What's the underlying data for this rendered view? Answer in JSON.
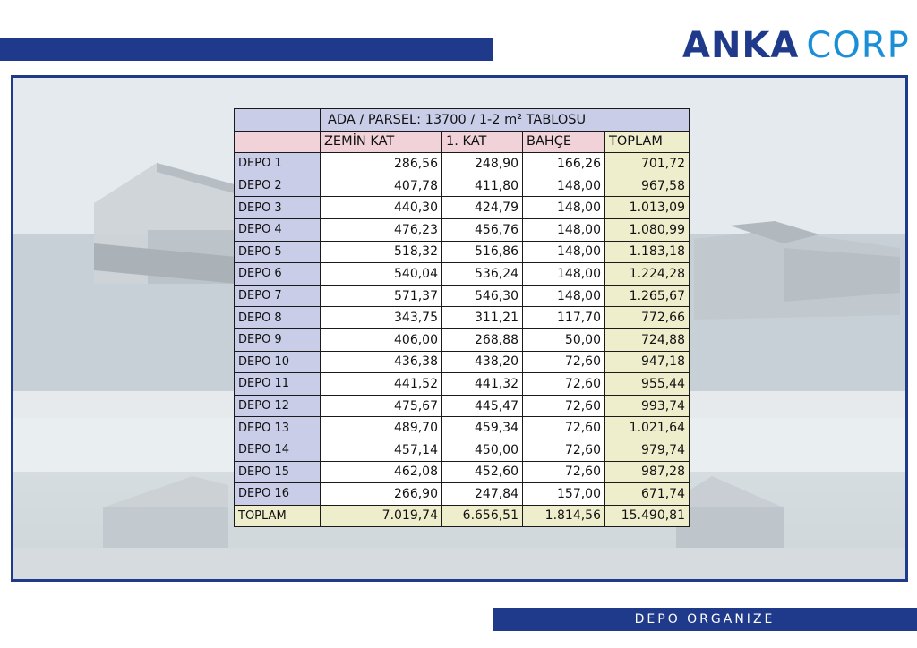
{
  "logo": {
    "part1": "ANKA",
    "part2": "CORP"
  },
  "colors": {
    "brand_navy": "#1f3a8a",
    "brand_cyan": "#1a8fd8",
    "label_bg": "#c9cde8",
    "header_bg": "#f1d2d8",
    "total_bg": "#eeeecd"
  },
  "table": {
    "title": "ADA / PARSEL: 13700 / 1-2  m² TABLOSU",
    "headers": [
      "ZEMİN KAT",
      "1. KAT",
      "BAHÇE",
      "TOPLAM"
    ],
    "rows": [
      {
        "label": "DEPO 1",
        "zemin": "286,56",
        "kat": "248,90",
        "bahce": "166,26",
        "toplam": "701,72"
      },
      {
        "label": "DEPO 2",
        "zemin": "407,78",
        "kat": "411,80",
        "bahce": "148,00",
        "toplam": "967,58"
      },
      {
        "label": "DEPO 3",
        "zemin": "440,30",
        "kat": "424,79",
        "bahce": "148,00",
        "toplam": "1.013,09"
      },
      {
        "label": "DEPO 4",
        "zemin": "476,23",
        "kat": "456,76",
        "bahce": "148,00",
        "toplam": "1.080,99"
      },
      {
        "label": "DEPO 5",
        "zemin": "518,32",
        "kat": "516,86",
        "bahce": "148,00",
        "toplam": "1.183,18"
      },
      {
        "label": "DEPO 6",
        "zemin": "540,04",
        "kat": "536,24",
        "bahce": "148,00",
        "toplam": "1.224,28"
      },
      {
        "label": "DEPO 7",
        "zemin": "571,37",
        "kat": "546,30",
        "bahce": "148,00",
        "toplam": "1.265,67"
      },
      {
        "label": "DEPO 8",
        "zemin": "343,75",
        "kat": "311,21",
        "bahce": "117,70",
        "toplam": "772,66"
      },
      {
        "label": "DEPO 9",
        "zemin": "406,00",
        "kat": "268,88",
        "bahce": "50,00",
        "toplam": "724,88"
      },
      {
        "label": "DEPO 10",
        "zemin": "436,38",
        "kat": "438,20",
        "bahce": "72,60",
        "toplam": "947,18"
      },
      {
        "label": "DEPO 11",
        "zemin": "441,52",
        "kat": "441,32",
        "bahce": "72,60",
        "toplam": "955,44"
      },
      {
        "label": "DEPO 12",
        "zemin": "475,67",
        "kat": "445,47",
        "bahce": "72,60",
        "toplam": "993,74"
      },
      {
        "label": "DEPO 13",
        "zemin": "489,70",
        "kat": "459,34",
        "bahce": "72,60",
        "toplam": "1.021,64"
      },
      {
        "label": "DEPO 14",
        "zemin": "457,14",
        "kat": "450,00",
        "bahce": "72,60",
        "toplam": "979,74"
      },
      {
        "label": "DEPO 15",
        "zemin": "462,08",
        "kat": "452,60",
        "bahce": "72,60",
        "toplam": "987,28"
      },
      {
        "label": "DEPO 16",
        "zemin": "266,90",
        "kat": "247,84",
        "bahce": "157,00",
        "toplam": "671,74"
      }
    ],
    "footer": {
      "label": "TOPLAM",
      "zemin": "7.019,74",
      "kat": "6.656,51",
      "bahce": "1.814,56",
      "toplam": "15.490,81"
    }
  },
  "footer_bar": {
    "text": "DEPO ORGANIZE"
  }
}
